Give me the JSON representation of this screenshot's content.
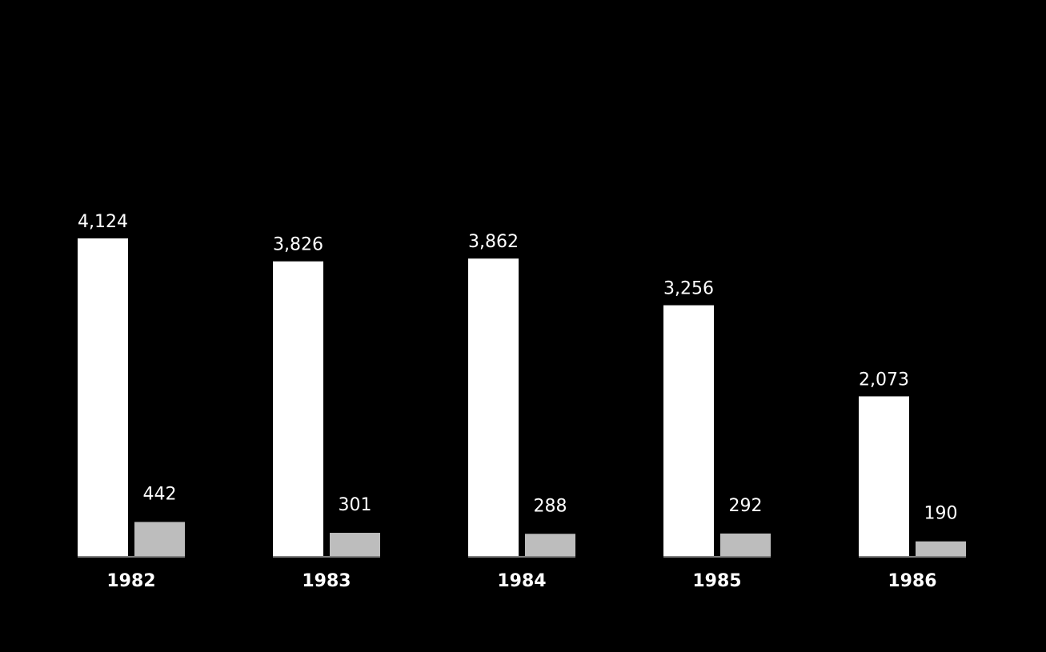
{
  "chart_data": {
    "type": "bar",
    "categories": [
      "1982",
      "1983",
      "1984",
      "1985",
      "1986"
    ],
    "series": [
      {
        "values": [
          4124,
          3826,
          3862,
          3256,
          2073
        ],
        "labels": [
          "4,124",
          "3,826",
          "3,862",
          "3,256",
          "2,073"
        ]
      },
      {
        "values": [
          442,
          301,
          288,
          292,
          190
        ],
        "labels": [
          "442",
          "301",
          "288",
          "292",
          "190"
        ]
      }
    ],
    "title": "",
    "xlabel": "",
    "ylabel": "",
    "ylim": [
      0,
      4124
    ],
    "grid": false,
    "legend": "none"
  },
  "colors": {
    "background": "#000000",
    "series_1": "#ffffff",
    "series_2": "#bdbdbd",
    "text": "#ffffff"
  }
}
